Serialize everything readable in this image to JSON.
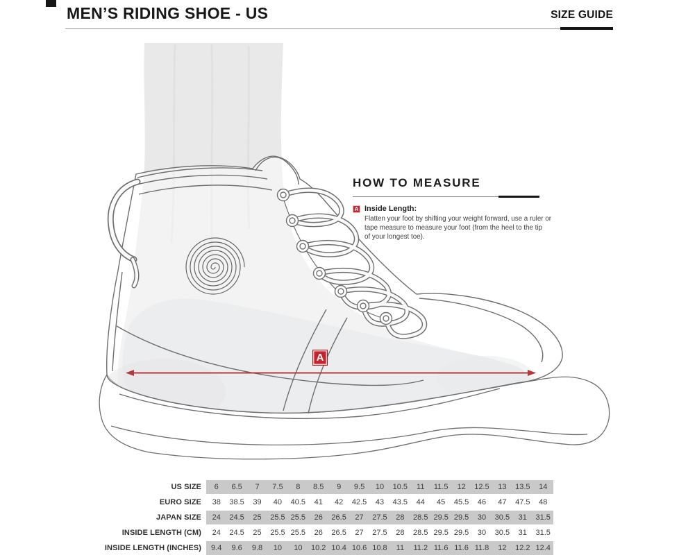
{
  "header": {
    "title": "MEN’S RIDING SHOE - US",
    "size_guide_label": "SIZE GUIDE"
  },
  "how_to_measure": {
    "title": "HOW TO MEASURE",
    "marker": "A",
    "item_title": "Inside Length:",
    "lines": [
      "Flatten your foot by shifting your weight forward, use a ruler or",
      "tape measure to measure your foot (from the heel to the tip",
      "of your longest toe)."
    ]
  },
  "measurement": {
    "marker": "A"
  },
  "table": {
    "rows": [
      {
        "label": "US SIZE",
        "values": [
          "6",
          "6.5",
          "7",
          "7.5",
          "8",
          "8.5",
          "9",
          "9.5",
          "10",
          "10.5",
          "11",
          "11.5",
          "12",
          "12.5",
          "13",
          "13.5",
          "14"
        ]
      },
      {
        "label": "EURO SIZE",
        "values": [
          "38",
          "38.5",
          "39",
          "40",
          "40.5",
          "41",
          "42",
          "42.5",
          "43",
          "43.5",
          "44",
          "45",
          "45.5",
          "46",
          "47",
          "47.5",
          "48"
        ]
      },
      {
        "label": "JAPAN SIZE",
        "values": [
          "24",
          "24.5",
          "25",
          "25.5",
          "25.5",
          "26",
          "26.5",
          "27",
          "27.5",
          "28",
          "28.5",
          "29.5",
          "29.5",
          "30",
          "30.5",
          "31",
          "31.5"
        ]
      },
      {
        "label": "INSIDE LENGTH (CM)",
        "values": [
          "24",
          "24.5",
          "25",
          "25.5",
          "25.5",
          "26",
          "26.5",
          "27",
          "27.5",
          "28",
          "28.5",
          "29.5",
          "29.5",
          "30",
          "30.5",
          "31",
          "31.5"
        ]
      },
      {
        "label": "INSIDE LENGTH (INCHES)",
        "values": [
          "9.4",
          "9.6",
          "9.8",
          "10",
          "10",
          "10.2",
          "10.4",
          "10.6",
          "10.8",
          "11",
          "11.2",
          "11.6",
          "11.6",
          "11.8",
          "12",
          "12.2",
          "12.4"
        ]
      }
    ]
  },
  "colors": {
    "accent_red": "#c4242b",
    "arrow_red": "#b23a3e",
    "band_gray": "#c9c9c9",
    "line_gray": "#6e6e70",
    "sock_gray": "#e9e9ea"
  }
}
